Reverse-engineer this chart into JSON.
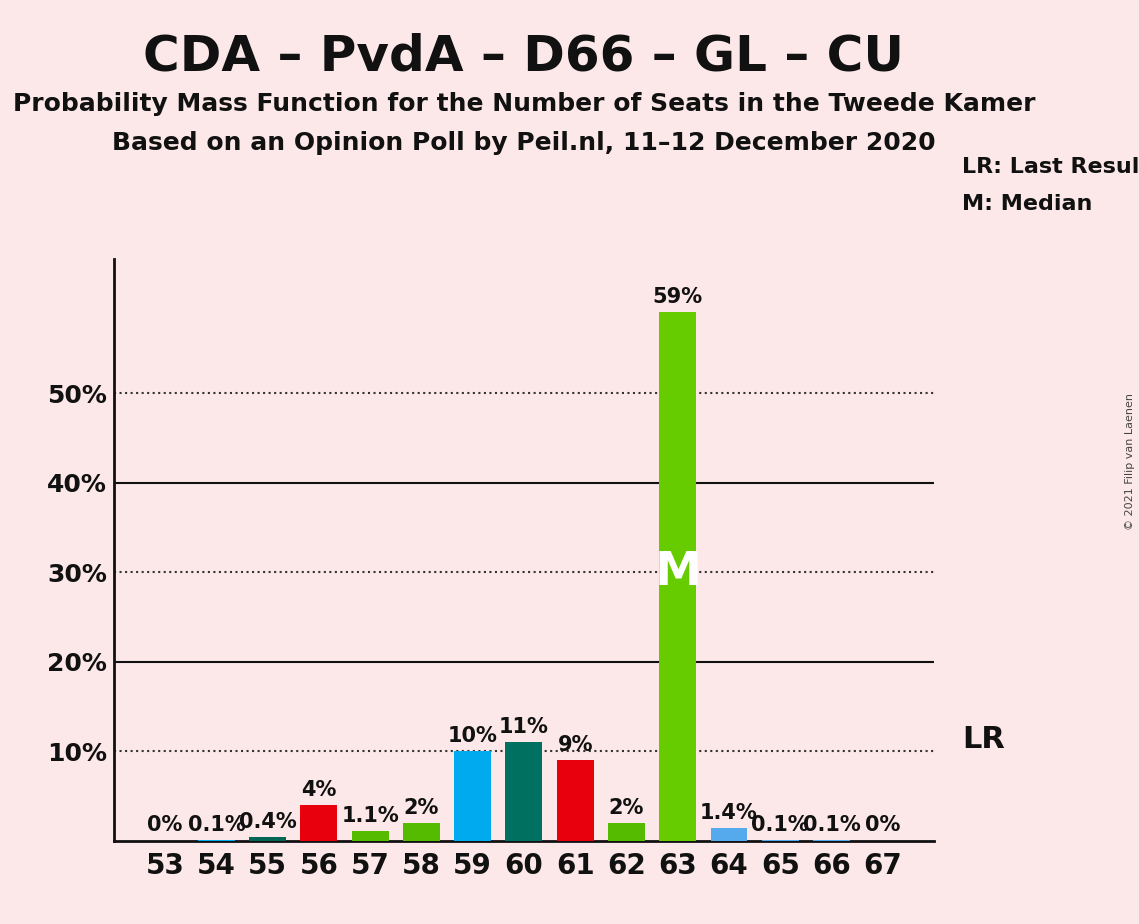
{
  "title": "CDA – PvdA – D66 – GL – CU",
  "subtitle": "Probability Mass Function for the Number of Seats in the Tweede Kamer",
  "subsubtitle": "Based on an Opinion Poll by Peil.nl, 11–12 December 2020",
  "copyright": "© 2021 Filip van Laenen",
  "seats": [
    53,
    54,
    55,
    56,
    57,
    58,
    59,
    60,
    61,
    62,
    63,
    64,
    65,
    66,
    67
  ],
  "values": [
    0.0,
    0.1,
    0.4,
    4.0,
    1.1,
    2.0,
    10.0,
    11.0,
    9.0,
    2.0,
    59.0,
    1.4,
    0.1,
    0.1,
    0.0
  ],
  "labels": [
    "0%",
    "0.1%",
    "0.4%",
    "4%",
    "1.1%",
    "2%",
    "10%",
    "11%",
    "9%",
    "2%",
    "59%",
    "1.4%",
    "0.1%",
    "0.1%",
    "0%"
  ],
  "bar_colors": [
    "#e8000d",
    "#00aaee",
    "#006655",
    "#e8000d",
    "#55bb00",
    "#55bb00",
    "#00aaee",
    "#007060",
    "#e8000d",
    "#55bb00",
    "#66cc00",
    "#55aaee",
    "#55aaee",
    "#55aaee",
    "#55aaee"
  ],
  "median_seat": 63,
  "median_label": "M",
  "lr_label": "LR",
  "ylim": [
    0,
    65
  ],
  "yticks_solid": [
    20,
    40
  ],
  "yticks_dotted": [
    10,
    30,
    50
  ],
  "ytick_labels_map": {
    "0": "",
    "10": "10%",
    "20": "20%",
    "30": "30%",
    "40": "40%",
    "50": "50%"
  },
  "background_color": "#fce8e8",
  "legend_lr": "LR: Last Result",
  "legend_m": "M: Median",
  "title_fontsize": 36,
  "subtitle_fontsize": 18,
  "label_fontsize": 15,
  "bar_width": 0.72
}
